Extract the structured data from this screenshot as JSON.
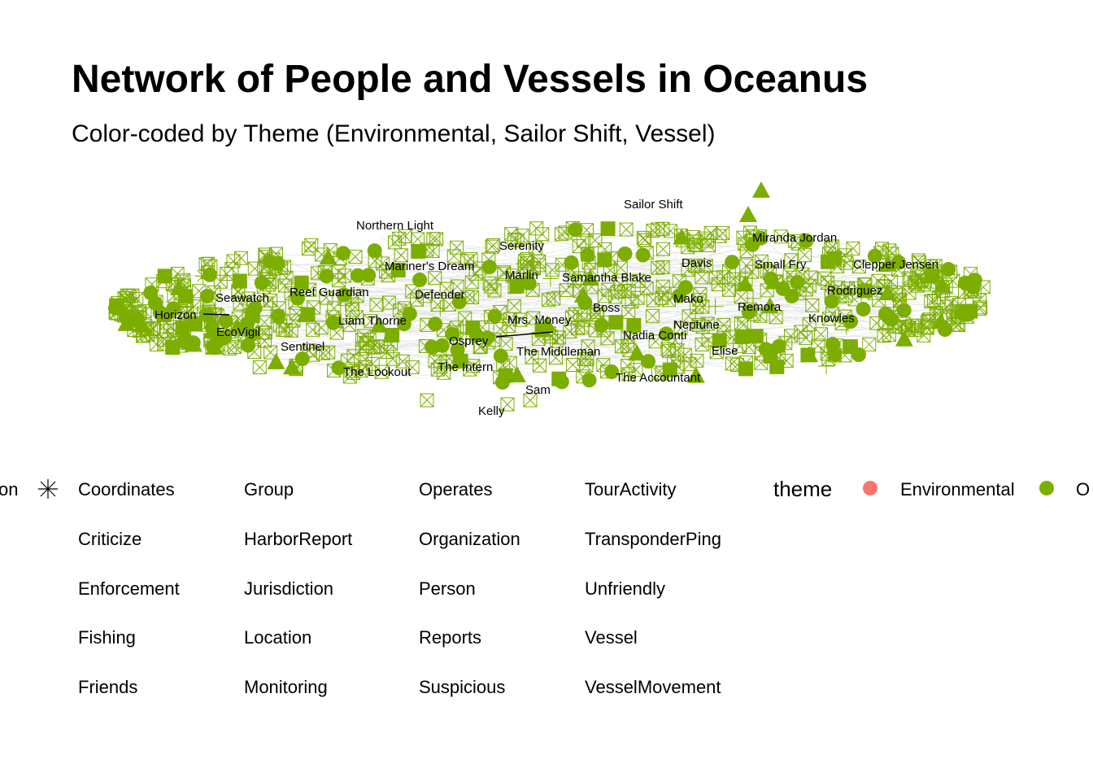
{
  "title": "Network of People and Vessels in Oceanus",
  "subtitle": "Color-coded by Theme (Environmental, Sailor Shift, Vessel)",
  "colors": {
    "node_green": "#7cae00",
    "edge_gray": "#e6e6e6",
    "theme_environmental": "#f8766d",
    "theme_other": "#7cae00"
  },
  "node_labels": [
    "Sailor Shift",
    "Northern Light",
    "Serenity",
    "Miranda Jordan",
    "Mariner's Dream",
    "Davis",
    "Small Fry",
    "Clepper Jensen",
    "Marlin",
    "Samantha Blake",
    "Seawatch",
    "Reef Guardian",
    "Defender",
    "Rodriguez",
    "Mako",
    "Horizon",
    "Boss",
    "Remora",
    "Liam Thorne",
    "Mrs. Money",
    "Knowles",
    "Neptune",
    "EcoVigil",
    "Nadia Conti",
    "Osprey",
    "Sentinel",
    "The Middleman",
    "Elise",
    "The Intern",
    "The Lookout",
    "The Accountant",
    "Sam",
    "Kelly"
  ],
  "legend": {
    "type_partial": "on",
    "type_items": [
      "Coordinates",
      "Criticize",
      "Enforcement",
      "Fishing",
      "Friends",
      "Group",
      "HarborReport",
      "Jurisdiction",
      "Location",
      "Monitoring",
      "Operates",
      "Organization",
      "Person",
      "Reports",
      "Suspicious",
      "TourActivity",
      "TransponderPing",
      "Unfriendly",
      "Vessel",
      "VesselMovement"
    ],
    "theme_title": "theme",
    "theme_items": [
      "Environmental",
      "O"
    ]
  }
}
